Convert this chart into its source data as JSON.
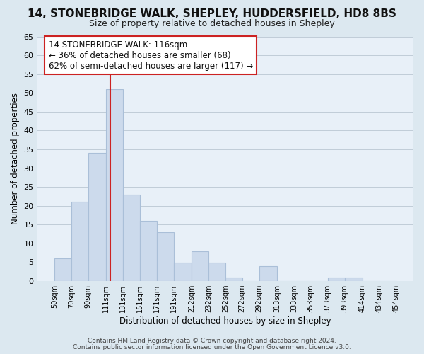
{
  "title": "14, STONEBRIDGE WALK, SHEPLEY, HUDDERSFIELD, HD8 8BS",
  "subtitle": "Size of property relative to detached houses in Shepley",
  "xlabel": "Distribution of detached houses by size in Shepley",
  "ylabel": "Number of detached properties",
  "bar_color": "#ccdaec",
  "bar_edgecolor": "#aabfd8",
  "bin_labels": [
    "50sqm",
    "70sqm",
    "90sqm",
    "111sqm",
    "131sqm",
    "151sqm",
    "171sqm",
    "191sqm",
    "212sqm",
    "232sqm",
    "252sqm",
    "272sqm",
    "292sqm",
    "313sqm",
    "333sqm",
    "353sqm",
    "373sqm",
    "393sqm",
    "414sqm",
    "434sqm",
    "454sqm"
  ],
  "bin_edges": [
    50,
    70,
    90,
    111,
    131,
    151,
    171,
    191,
    212,
    232,
    252,
    272,
    292,
    313,
    333,
    353,
    373,
    393,
    414,
    434,
    454
  ],
  "bar_heights": [
    6,
    21,
    34,
    51,
    23,
    16,
    13,
    5,
    8,
    5,
    1,
    0,
    4,
    0,
    0,
    0,
    1,
    1,
    0,
    0
  ],
  "ylim": [
    0,
    65
  ],
  "yticks": [
    0,
    5,
    10,
    15,
    20,
    25,
    30,
    35,
    40,
    45,
    50,
    55,
    60,
    65
  ],
  "redline_x": 116,
  "annotation_title": "14 STONEBRIDGE WALK: 116sqm",
  "annotation_line1": "← 36% of detached houses are smaller (68)",
  "annotation_line2": "62% of semi-detached houses are larger (117) →",
  "footer1": "Contains HM Land Registry data © Crown copyright and database right 2024.",
  "footer2": "Contains public sector information licensed under the Open Government Licence v3.0.",
  "bg_color": "#dce8f0",
  "plot_bg_color": "#e8f0f8",
  "grid_color": "#c0ccd8",
  "title_fontsize": 11,
  "subtitle_fontsize": 9,
  "annotation_fontsize": 8.5
}
